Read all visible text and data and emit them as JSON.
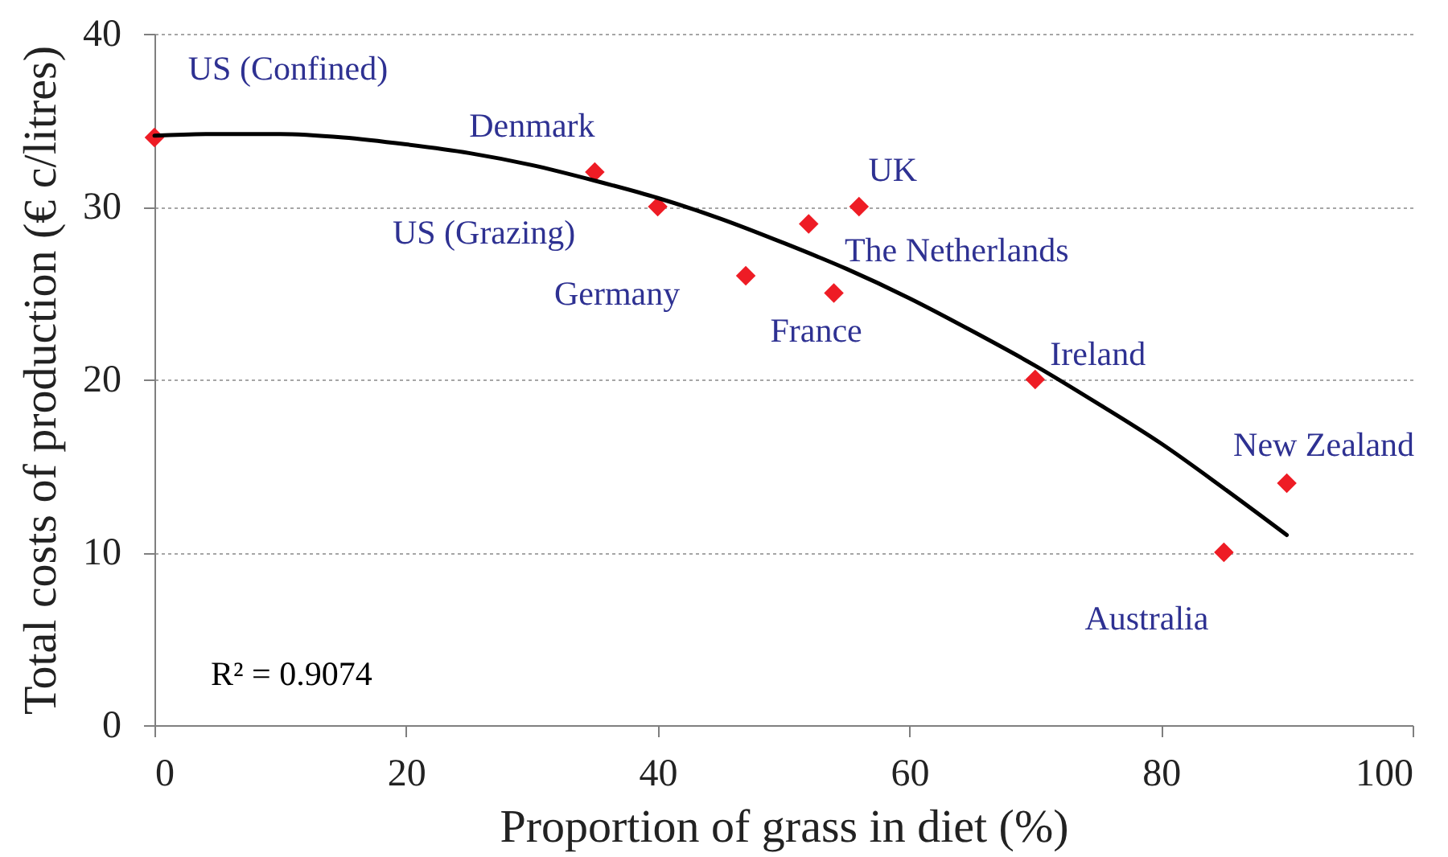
{
  "chart_data": {
    "type": "scatter",
    "xlabel": "Proportion of grass in diet (%)",
    "ylabel": "Total costs of production (€ c/litres)",
    "xlim": [
      0,
      100
    ],
    "ylim": [
      0,
      40
    ],
    "xticks": [
      0,
      20,
      40,
      60,
      80,
      100
    ],
    "yticks": [
      0,
      10,
      20,
      30,
      40
    ],
    "grid": "y",
    "marker": "diamond",
    "series": [
      {
        "type": "scatter",
        "color": "#ee1c25",
        "x": [
          0,
          35,
          40,
          47,
          52,
          54,
          56,
          70,
          85,
          90
        ],
        "values": [
          34,
          32,
          30,
          26,
          29,
          25,
          30,
          20,
          10,
          14
        ]
      },
      {
        "type": "line",
        "color": "#000000",
        "marker": "none",
        "line_style": "solid",
        "x": [
          0,
          5,
          10,
          15,
          20,
          25,
          30,
          35,
          40,
          45,
          50,
          55,
          60,
          65,
          70,
          75,
          80,
          85,
          90
        ],
        "values": [
          34.1,
          34.2,
          34.2,
          34.0,
          33.6,
          33.1,
          32.4,
          31.5,
          30.5,
          29.3,
          27.9,
          26.4,
          24.7,
          22.8,
          20.8,
          18.6,
          16.3,
          13.7,
          11.0
        ]
      }
    ],
    "annotations": [
      {
        "text": "US (Confined)",
        "x": 0,
        "y": 34
      },
      {
        "text": "Denmark",
        "x": 35,
        "y": 32
      },
      {
        "text": "US (Grazing)",
        "x": 40,
        "y": 30
      },
      {
        "text": "Germany",
        "x": 47,
        "y": 26
      },
      {
        "text": "The Netherlands",
        "x": 52,
        "y": 29
      },
      {
        "text": "France",
        "x": 54,
        "y": 25
      },
      {
        "text": "UK",
        "x": 56,
        "y": 30
      },
      {
        "text": "Ireland",
        "x": 70,
        "y": 20
      },
      {
        "text": "Australia",
        "x": 85,
        "y": 10
      },
      {
        "text": "New Zealand",
        "x": 90,
        "y": 14
      },
      "R² = 0.9074"
    ]
  }
}
